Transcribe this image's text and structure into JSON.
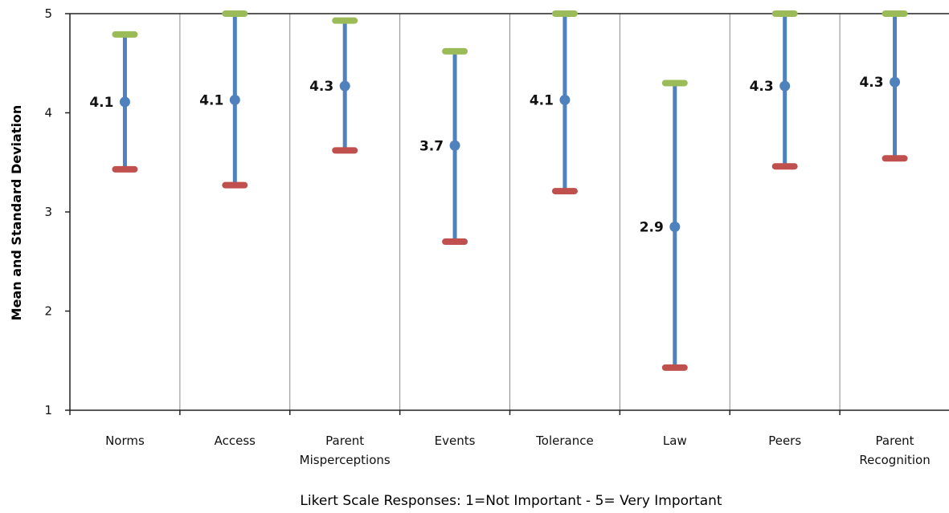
{
  "chart_data": {
    "type": "error-bar",
    "ylabel": "Mean and Standard Deviation",
    "xlabel": "Likert Scale Responses:  1=Not Important - 5= Very Important",
    "ylim": [
      1,
      5
    ],
    "yticks": [
      "1",
      "2",
      "3",
      "4",
      "5"
    ],
    "grid": {
      "vertical_separators": true,
      "top_line": true
    },
    "colors": {
      "range": "#4f81bd",
      "mean": "#4f81bd",
      "upper": "#9bbb59",
      "lower": "#c0504d"
    },
    "categories": [
      {
        "lines": [
          "Norms"
        ],
        "mean": 4.11,
        "upper": 4.79,
        "lower": 3.43,
        "label": "4.1"
      },
      {
        "lines": [
          "Access"
        ],
        "mean": 4.13,
        "upper": 5.0,
        "lower": 3.27,
        "label": "4.1"
      },
      {
        "lines": [
          "Parent",
          "Misperceptions"
        ],
        "mean": 4.27,
        "upper": 4.93,
        "lower": 3.62,
        "label": "4.3"
      },
      {
        "lines": [
          "Events"
        ],
        "mean": 3.67,
        "upper": 4.62,
        "lower": 2.7,
        "label": "3.7"
      },
      {
        "lines": [
          "Tolerance"
        ],
        "mean": 4.13,
        "upper": 5.0,
        "lower": 3.21,
        "label": "4.1"
      },
      {
        "lines": [
          "Law"
        ],
        "mean": 2.85,
        "upper": 4.3,
        "lower": 1.43,
        "label": "2.9"
      },
      {
        "lines": [
          "Peers"
        ],
        "mean": 4.27,
        "upper": 5.0,
        "lower": 3.46,
        "label": "4.3"
      },
      {
        "lines": [
          "Parent",
          "Recognition"
        ],
        "mean": 4.31,
        "upper": 5.0,
        "lower": 3.54,
        "label": "4.3"
      }
    ]
  }
}
